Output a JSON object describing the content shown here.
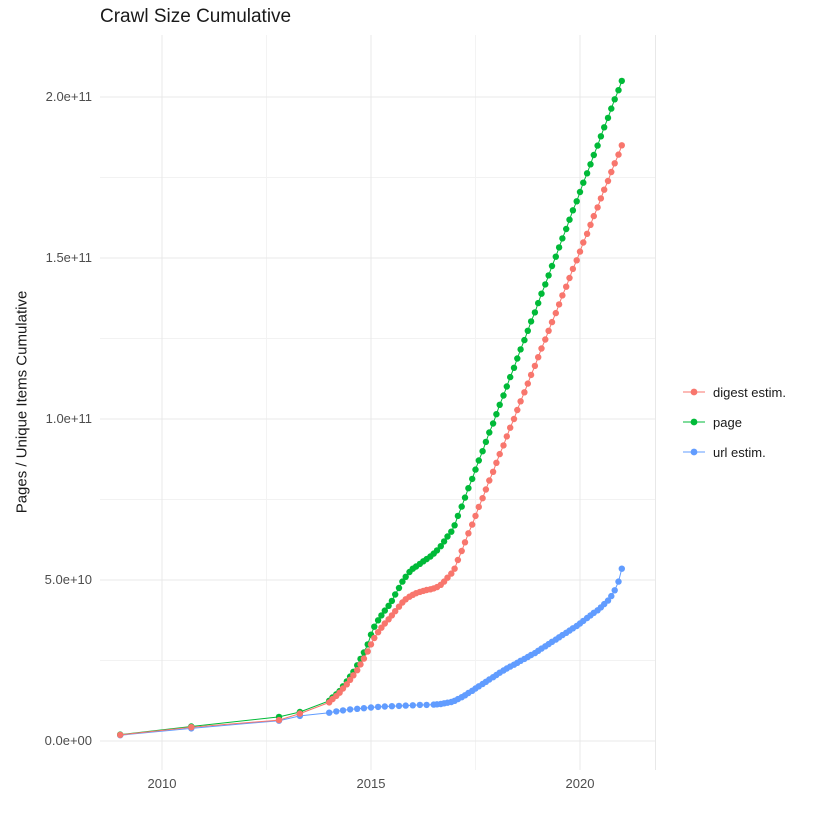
{
  "title": "Crawl Size Cumulative",
  "axes": {
    "y_title": "Pages / Unique Items Cumulative",
    "x_ticks": [
      {
        "label": "2010",
        "value": 2010
      },
      {
        "label": "2015",
        "value": 2015
      },
      {
        "label": "2020",
        "value": 2020
      }
    ],
    "x_minor": [
      2012.5,
      2017.5
    ],
    "y_ticks": [
      {
        "label": "0.0e+00",
        "value": 0
      },
      {
        "label": "5.0e+10",
        "value": 50
      },
      {
        "label": "1.0e+11",
        "value": 100
      },
      {
        "label": "1.5e+11",
        "value": 150
      },
      {
        "label": "2.0e+11",
        "value": 200
      }
    ],
    "y_minor": [
      25,
      75,
      125,
      175
    ]
  },
  "colors": {
    "digest": "#F8766D",
    "page": "#00BA38",
    "url": "#619CFF",
    "grid_major": "#E8E8E8",
    "grid_minor": "#F2F2F2",
    "tick_text": "#4d4d4d",
    "title_text": "#1a1a1a"
  },
  "legend": {
    "position": "right",
    "entries": [
      "digest estim.",
      "page",
      "url estim."
    ]
  },
  "chart_data": {
    "type": "scatter",
    "title": "Crawl Size Cumulative",
    "xlabel": "",
    "ylabel": "Pages / Unique Items Cumulative",
    "x_unit": "year",
    "y_unit_multiplier": 1000000000.0,
    "x_range": [
      2008.5,
      2021.8
    ],
    "y_range_billions": [
      -9,
      219
    ],
    "grid": true,
    "legend_position": "right",
    "series": [
      {
        "name": "digest estim.",
        "color": "#F8766D",
        "points_billions": [
          [
            2009,
            1.9
          ],
          [
            2010.7,
            4.3
          ],
          [
            2012.8,
            6.5
          ],
          [
            2013.3,
            8.5
          ],
          [
            2014,
            12
          ],
          [
            2014.08,
            13
          ],
          [
            2014.17,
            14
          ],
          [
            2014.25,
            15
          ],
          [
            2014.33,
            16.3
          ],
          [
            2014.42,
            17.6
          ],
          [
            2014.5,
            19
          ],
          [
            2014.58,
            20.4
          ],
          [
            2014.67,
            22
          ],
          [
            2014.75,
            23.8
          ],
          [
            2014.83,
            25.6
          ],
          [
            2014.92,
            27.8
          ],
          [
            2015,
            30
          ],
          [
            2015.08,
            32
          ],
          [
            2015.17,
            33.8
          ],
          [
            2015.25,
            35.2
          ],
          [
            2015.33,
            36.5
          ],
          [
            2015.42,
            37.8
          ],
          [
            2015.5,
            39
          ],
          [
            2015.58,
            40.3
          ],
          [
            2015.67,
            41.7
          ],
          [
            2015.75,
            43
          ],
          [
            2015.83,
            44
          ],
          [
            2015.92,
            44.8
          ],
          [
            2016,
            45.4
          ],
          [
            2016.08,
            45.9
          ],
          [
            2016.17,
            46.3
          ],
          [
            2016.25,
            46.6
          ],
          [
            2016.33,
            46.9
          ],
          [
            2016.42,
            47.1
          ],
          [
            2016.5,
            47.4
          ],
          [
            2016.58,
            47.8
          ],
          [
            2016.67,
            48.5
          ],
          [
            2016.75,
            49.5
          ],
          [
            2016.83,
            50.7
          ],
          [
            2016.92,
            52
          ],
          [
            2017,
            53.5
          ],
          [
            2017.08,
            56.2
          ],
          [
            2017.17,
            59
          ],
          [
            2017.25,
            61.7
          ],
          [
            2017.33,
            64.5
          ],
          [
            2017.42,
            67.2
          ],
          [
            2017.5,
            69.9
          ],
          [
            2017.58,
            72.7
          ],
          [
            2017.67,
            75.4
          ],
          [
            2017.75,
            78.1
          ],
          [
            2017.83,
            80.9
          ],
          [
            2017.92,
            83.6
          ],
          [
            2018,
            86.4
          ],
          [
            2018.08,
            89.1
          ],
          [
            2018.17,
            91.8
          ],
          [
            2018.25,
            94.6
          ],
          [
            2018.33,
            97.3
          ],
          [
            2018.42,
            100
          ],
          [
            2018.5,
            102.8
          ],
          [
            2018.58,
            105.5
          ],
          [
            2018.67,
            108.3
          ],
          [
            2018.75,
            111
          ],
          [
            2018.83,
            113.7
          ],
          [
            2018.92,
            116.5
          ],
          [
            2019,
            119.2
          ],
          [
            2019.08,
            121.9
          ],
          [
            2019.17,
            124.7
          ],
          [
            2019.25,
            127.4
          ],
          [
            2019.33,
            130.1
          ],
          [
            2019.42,
            132.9
          ],
          [
            2019.5,
            135.6
          ],
          [
            2019.58,
            138.4
          ],
          [
            2019.67,
            141.1
          ],
          [
            2019.75,
            143.8
          ],
          [
            2019.83,
            146.6
          ],
          [
            2019.92,
            149.3
          ],
          [
            2020,
            152
          ],
          [
            2020.08,
            154.8
          ],
          [
            2020.17,
            157.5
          ],
          [
            2020.25,
            160.3
          ],
          [
            2020.33,
            163
          ],
          [
            2020.42,
            165.7
          ],
          [
            2020.5,
            168.5
          ],
          [
            2020.58,
            171.2
          ],
          [
            2020.67,
            173.9
          ],
          [
            2020.75,
            176.7
          ],
          [
            2020.83,
            179.4
          ],
          [
            2020.92,
            182.1
          ],
          [
            2021,
            185
          ]
        ]
      },
      {
        "name": "page",
        "color": "#00BA38",
        "points_billions": [
          [
            2009,
            2
          ],
          [
            2010.7,
            4.5
          ],
          [
            2012.8,
            7.5
          ],
          [
            2013.3,
            9
          ],
          [
            2014,
            12.5
          ],
          [
            2014.08,
            13.5
          ],
          [
            2014.17,
            14.5
          ],
          [
            2014.25,
            15.5
          ],
          [
            2014.33,
            17
          ],
          [
            2014.42,
            18.5
          ],
          [
            2014.5,
            20
          ],
          [
            2014.58,
            21.5
          ],
          [
            2014.67,
            23.5
          ],
          [
            2014.75,
            25.5
          ],
          [
            2014.83,
            27.5
          ],
          [
            2014.92,
            30
          ],
          [
            2015,
            33
          ],
          [
            2015.08,
            35.5
          ],
          [
            2015.17,
            37.5
          ],
          [
            2015.25,
            39
          ],
          [
            2015.33,
            40.5
          ],
          [
            2015.42,
            42
          ],
          [
            2015.5,
            43.5
          ],
          [
            2015.58,
            45.5
          ],
          [
            2015.67,
            47.5
          ],
          [
            2015.75,
            49.5
          ],
          [
            2015.83,
            51
          ],
          [
            2015.92,
            52.5
          ],
          [
            2016,
            53.5
          ],
          [
            2016.08,
            54.2
          ],
          [
            2016.17,
            55
          ],
          [
            2016.25,
            55.8
          ],
          [
            2016.33,
            56.5
          ],
          [
            2016.42,
            57.3
          ],
          [
            2016.5,
            58.2
          ],
          [
            2016.58,
            59.2
          ],
          [
            2016.67,
            60.5
          ],
          [
            2016.75,
            62
          ],
          [
            2016.83,
            63.5
          ],
          [
            2016.92,
            65
          ],
          [
            2017,
            67
          ],
          [
            2017.08,
            69.9
          ],
          [
            2017.17,
            72.8
          ],
          [
            2017.25,
            75.6
          ],
          [
            2017.33,
            78.5
          ],
          [
            2017.42,
            81.4
          ],
          [
            2017.5,
            84.3
          ],
          [
            2017.58,
            87.1
          ],
          [
            2017.67,
            90
          ],
          [
            2017.75,
            92.9
          ],
          [
            2017.83,
            95.8
          ],
          [
            2017.92,
            98.6
          ],
          [
            2018,
            101.5
          ],
          [
            2018.08,
            104.4
          ],
          [
            2018.17,
            107.3
          ],
          [
            2018.25,
            110.1
          ],
          [
            2018.33,
            113
          ],
          [
            2018.42,
            115.9
          ],
          [
            2018.5,
            118.8
          ],
          [
            2018.58,
            121.6
          ],
          [
            2018.67,
            124.5
          ],
          [
            2018.75,
            127.4
          ],
          [
            2018.83,
            130.3
          ],
          [
            2018.92,
            133.1
          ],
          [
            2019,
            136
          ],
          [
            2019.08,
            138.9
          ],
          [
            2019.17,
            141.8
          ],
          [
            2019.25,
            144.6
          ],
          [
            2019.33,
            147.5
          ],
          [
            2019.42,
            150.4
          ],
          [
            2019.5,
            153.3
          ],
          [
            2019.58,
            156.1
          ],
          [
            2019.67,
            159
          ],
          [
            2019.75,
            161.9
          ],
          [
            2019.83,
            164.8
          ],
          [
            2019.92,
            167.6
          ],
          [
            2020,
            170.5
          ],
          [
            2020.08,
            173.4
          ],
          [
            2020.17,
            176.3
          ],
          [
            2020.25,
            179.1
          ],
          [
            2020.33,
            182
          ],
          [
            2020.42,
            184.9
          ],
          [
            2020.5,
            187.8
          ],
          [
            2020.58,
            190.6
          ],
          [
            2020.67,
            193.5
          ],
          [
            2020.75,
            196.4
          ],
          [
            2020.83,
            199.3
          ],
          [
            2020.92,
            202.1
          ],
          [
            2021,
            205
          ]
        ]
      },
      {
        "name": "url estim.",
        "color": "#619CFF",
        "points_billions": [
          [
            2009,
            1.8
          ],
          [
            2010.7,
            3.9
          ],
          [
            2012.8,
            6.3
          ],
          [
            2013.3,
            7.8
          ],
          [
            2014,
            8.8
          ],
          [
            2014.17,
            9.2
          ],
          [
            2014.33,
            9.5
          ],
          [
            2014.5,
            9.8
          ],
          [
            2014.67,
            10
          ],
          [
            2014.83,
            10.2
          ],
          [
            2015,
            10.4
          ],
          [
            2015.17,
            10.6
          ],
          [
            2015.33,
            10.7
          ],
          [
            2015.5,
            10.8
          ],
          [
            2015.67,
            10.9
          ],
          [
            2015.83,
            11
          ],
          [
            2016,
            11.1
          ],
          [
            2016.17,
            11.2
          ],
          [
            2016.33,
            11.2
          ],
          [
            2016.5,
            11.3
          ],
          [
            2016.58,
            11.4
          ],
          [
            2016.67,
            11.5
          ],
          [
            2016.75,
            11.7
          ],
          [
            2016.83,
            11.9
          ],
          [
            2016.92,
            12.1
          ],
          [
            2017,
            12.5
          ],
          [
            2017.08,
            13
          ],
          [
            2017.17,
            13.6
          ],
          [
            2017.25,
            14.2
          ],
          [
            2017.33,
            14.9
          ],
          [
            2017.42,
            15.6
          ],
          [
            2017.5,
            16.3
          ],
          [
            2017.58,
            17
          ],
          [
            2017.67,
            17.7
          ],
          [
            2017.75,
            18.4
          ],
          [
            2017.83,
            19.1
          ],
          [
            2017.92,
            19.8
          ],
          [
            2018,
            20.5
          ],
          [
            2018.08,
            21.2
          ],
          [
            2018.17,
            21.9
          ],
          [
            2018.25,
            22.5
          ],
          [
            2018.33,
            23.1
          ],
          [
            2018.42,
            23.7
          ],
          [
            2018.5,
            24.3
          ],
          [
            2018.58,
            24.9
          ],
          [
            2018.67,
            25.5
          ],
          [
            2018.75,
            26.1
          ],
          [
            2018.83,
            26.7
          ],
          [
            2018.92,
            27.3
          ],
          [
            2019,
            28
          ],
          [
            2019.08,
            28.7
          ],
          [
            2019.17,
            29.4
          ],
          [
            2019.25,
            30.1
          ],
          [
            2019.33,
            30.8
          ],
          [
            2019.42,
            31.5
          ],
          [
            2019.5,
            32.2
          ],
          [
            2019.58,
            32.9
          ],
          [
            2019.67,
            33.6
          ],
          [
            2019.75,
            34.3
          ],
          [
            2019.83,
            35
          ],
          [
            2019.92,
            35.7
          ],
          [
            2020,
            36.5
          ],
          [
            2020.08,
            37.3
          ],
          [
            2020.17,
            38.2
          ],
          [
            2020.25,
            39
          ],
          [
            2020.33,
            39.8
          ],
          [
            2020.42,
            40.6
          ],
          [
            2020.5,
            41.5
          ],
          [
            2020.58,
            42.5
          ],
          [
            2020.67,
            43.6
          ],
          [
            2020.75,
            45
          ],
          [
            2020.83,
            46.8
          ],
          [
            2020.92,
            49.5
          ],
          [
            2021,
            53.5
          ]
        ]
      }
    ]
  }
}
